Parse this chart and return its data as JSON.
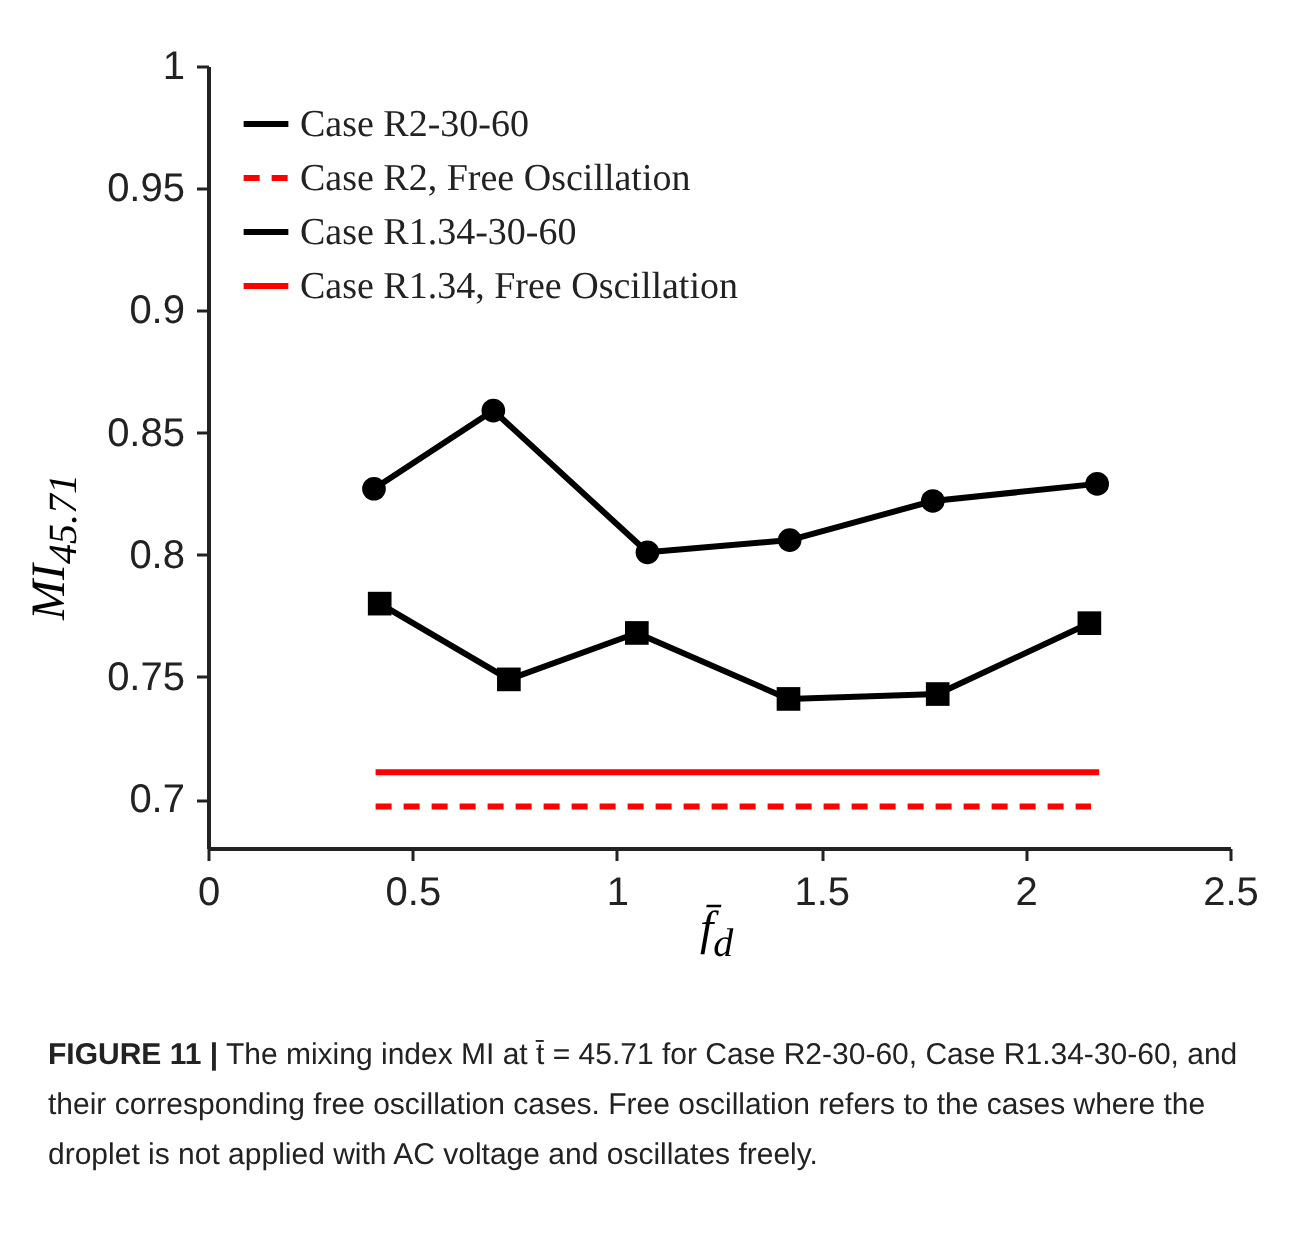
{
  "chart_data": {
    "type": "line",
    "xlabel": "f̄$_{d}$",
    "ylabel": "MI$_{45.71}$",
    "xlim": [
      0,
      2.5
    ],
    "xticks": [
      0,
      0.5,
      1,
      1.5,
      2,
      2.5
    ],
    "ylim": [
      0.68,
      1
    ],
    "yticks": [
      0.7,
      0.75,
      0.8,
      0.85,
      0.9,
      0.95,
      1
    ],
    "grid": false,
    "legend": "top left",
    "series": [
      {
        "name": "Case R2-30-60",
        "color": "#000000",
        "marker": "square",
        "line_style": "solid",
        "x": [
          0.42,
          0.736,
          1.049,
          1.42,
          1.785,
          2.156
        ],
        "values": [
          0.78,
          0.749,
          0.768,
          0.741,
          0.743,
          0.772
        ]
      },
      {
        "name": "Case R2, Free Oscillation",
        "color": "#ff0000",
        "marker": "none",
        "line_style": "dashed",
        "x": [
          0.41,
          2.16
        ],
        "values": [
          0.697,
          0.697
        ]
      },
      {
        "name": "Case R1.34-30-60",
        "color": "#000000",
        "marker": "circle",
        "line_style": "solid",
        "x": [
          0.406,
          0.698,
          1.075,
          1.423,
          1.773,
          2.175
        ],
        "values": [
          0.827,
          0.859,
          0.801,
          0.806,
          0.822,
          0.829
        ]
      },
      {
        "name": "Case R1.34, Free Oscillation",
        "color": "#ff0000",
        "marker": "none",
        "line_style": "solid",
        "x": [
          0.41,
          2.18
        ],
        "values": [
          0.711,
          0.711
        ]
      }
    ],
    "annotations": [
      "FIGURE 11 | The mixing index MI at t̄ = 45.71 for Case R2-30-60, Case R1.34-30-60, and their corresponding free oscillation cases. Free oscillation refers to the cases where the droplet is not applied with AC voltage and oscillates freely."
    ]
  }
}
